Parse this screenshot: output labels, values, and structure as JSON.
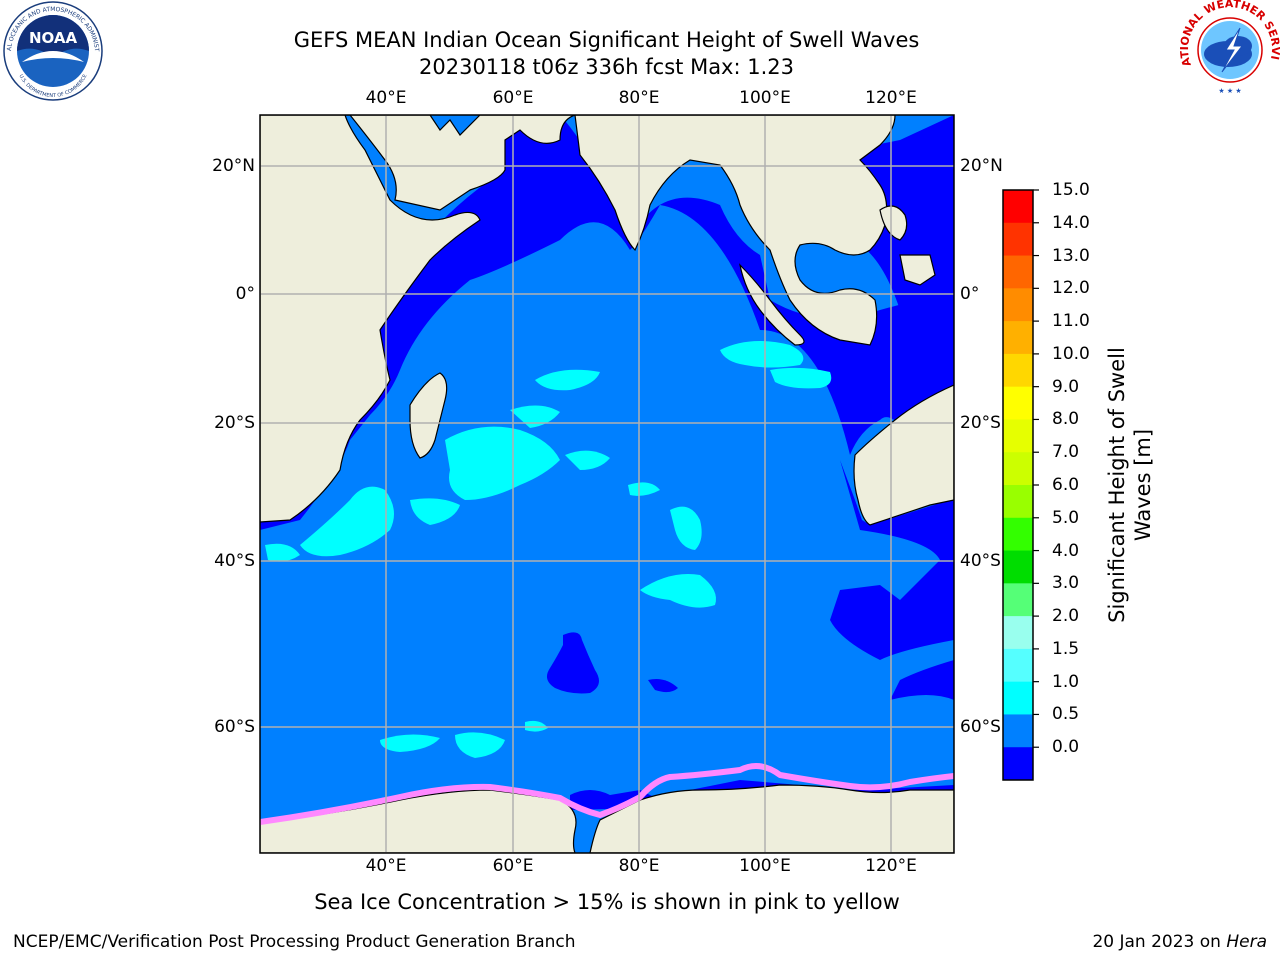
{
  "header": {
    "title_line1": "GEFS MEAN Indian Ocean Significant Height of Swell Waves",
    "title_line2": "20230118 t06z 336h fcst   Max: 1.23"
  },
  "map": {
    "lon_ticks": [
      "40°E",
      "60°E",
      "80°E",
      "100°E",
      "120°E"
    ],
    "lat_ticks": [
      "20°N",
      "0°",
      "20°S",
      "40°S",
      "60°S"
    ],
    "extent": {
      "lon": [
        20,
        130
      ],
      "lat": [
        -73,
        28
      ]
    },
    "colors": {
      "ocean_low": "#0000ff",
      "ocean_mid": "#0080ff",
      "ocean_high": "#00ffff",
      "land": "#eeeedc",
      "sea_ice": "#ff88ff",
      "grid": "#b0b0b0"
    }
  },
  "colorbar": {
    "label_line1": "Significant Height of Swell",
    "label_line2": "Waves [m]",
    "ticks": [
      "15.0",
      "14.0",
      "13.0",
      "12.0",
      "11.0",
      "10.0",
      "9.0",
      "8.0",
      "7.0",
      "6.0",
      "5.0",
      "4.0",
      "3.0",
      "2.0",
      "1.5",
      "1.0",
      "0.5",
      "0.0"
    ],
    "colors": [
      "#ff0000",
      "#ff3300",
      "#ff6600",
      "#ff8c00",
      "#ffb000",
      "#ffd700",
      "#ffff00",
      "#e6ff00",
      "#ccff00",
      "#99ff00",
      "#33ff00",
      "#00dd00",
      "#55ff77",
      "#99ffee",
      "#55ffff",
      "#00ffff",
      "#0080ff",
      "#0000ff"
    ]
  },
  "footnote": "Sea Ice Concentration > 15% is shown in pink to yellow",
  "footer": {
    "credit": "NCEP/EMC/Verification Post Processing Product Generation Branch",
    "date_prefix": "20 Jan 2023 on",
    "date_machine": "Hera"
  },
  "logos": {
    "noaa_text": "NOAA",
    "noaa_ring_text": "NATIONAL OCEANIC AND ATMOSPHERIC ADMINISTRATION",
    "noaa_bottom_text": "U.S. DEPARTMENT OF COMMERCE",
    "nws_ring_text": "NATIONAL WEATHER SERVICE"
  }
}
